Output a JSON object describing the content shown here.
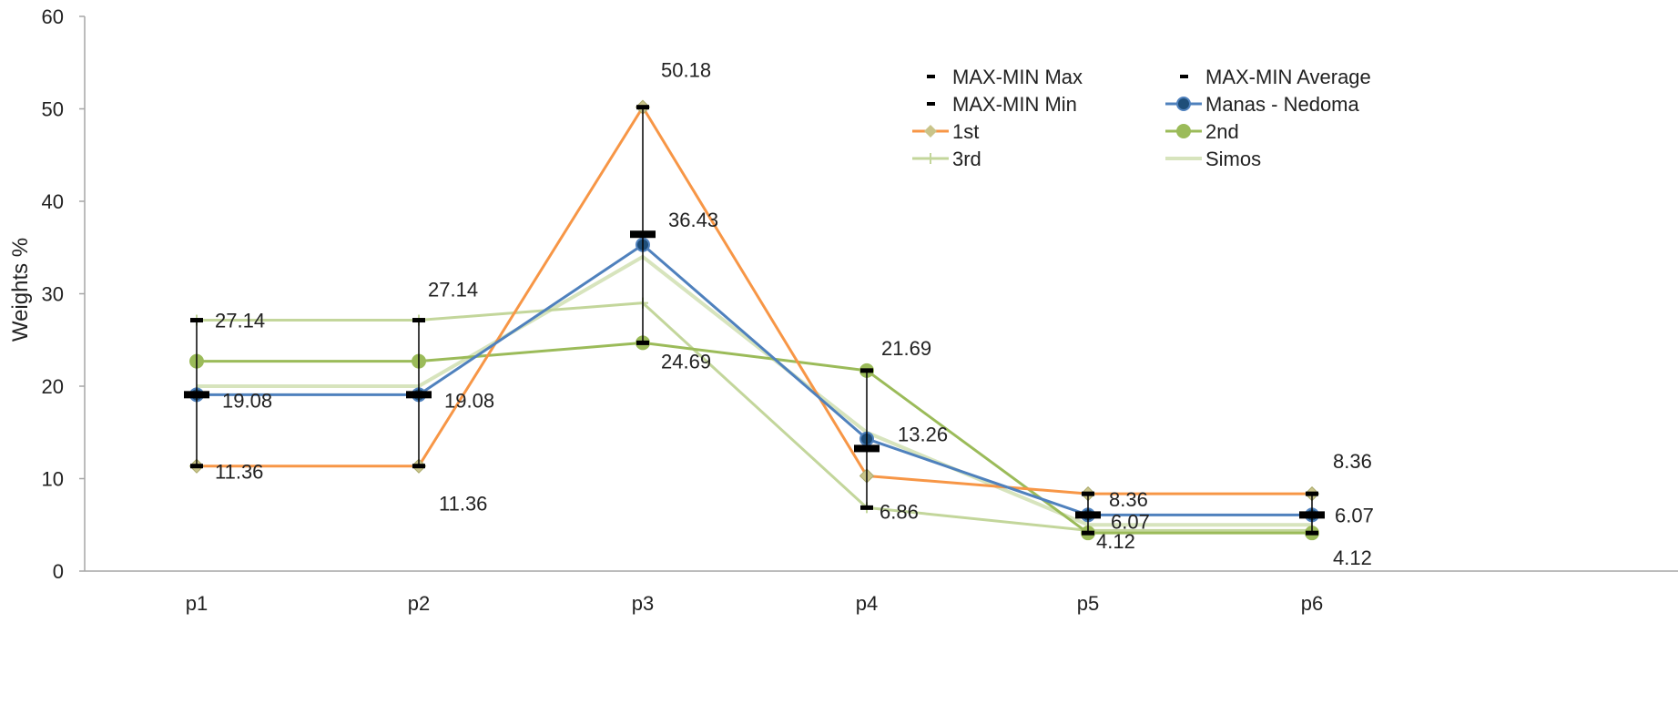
{
  "chart_data": {
    "type": "line",
    "title": "",
    "xlabel": "",
    "ylabel": "Weights  %",
    "ylim": [
      0,
      60
    ],
    "yticks": [
      0,
      10,
      20,
      30,
      40,
      50,
      60
    ],
    "grid": false,
    "legend_position": "top-right",
    "categories": [
      "p1",
      "p2",
      "p3",
      "p4",
      "p5",
      "p6"
    ],
    "error_bars": {
      "max": {
        "name": "MAX-MIN Max",
        "values": [
          27.14,
          27.14,
          50.18,
          21.69,
          8.36,
          8.36
        ]
      },
      "min": {
        "name": "MAX-MIN Min",
        "values": [
          11.36,
          11.36,
          24.69,
          6.86,
          4.12,
          4.12
        ]
      },
      "average": {
        "name": "MAX-MIN Average",
        "values": [
          19.08,
          19.08,
          36.43,
          13.26,
          6.07,
          6.07
        ]
      }
    },
    "series": [
      {
        "name": "Manas - Nedoma",
        "color": "#4f81bd",
        "marker": "circle",
        "values": [
          19.08,
          19.08,
          35.3,
          14.3,
          6.07,
          6.07
        ]
      },
      {
        "name": "1st",
        "color": "#f79646",
        "marker": "diamond",
        "values": [
          11.36,
          11.36,
          50.18,
          10.3,
          8.36,
          8.36
        ]
      },
      {
        "name": "2nd",
        "color": "#9bbb59",
        "marker": "circle",
        "values": [
          22.7,
          22.7,
          24.69,
          21.69,
          4.12,
          4.12
        ]
      },
      {
        "name": "3rd",
        "color": "#c3d69b",
        "marker": "plus",
        "values": [
          27.14,
          27.14,
          29.0,
          6.86,
          4.4,
          4.4
        ]
      },
      {
        "name": "Simos",
        "color": "#d7e4bd",
        "marker": "none",
        "values": [
          20.0,
          20.0,
          34.0,
          15.0,
          5.0,
          5.0
        ]
      }
    ],
    "data_labels": [
      {
        "category": "p1",
        "value": 27.14,
        "text": "27.14"
      },
      {
        "category": "p1",
        "value": 19.08,
        "text": "19.08"
      },
      {
        "category": "p1",
        "value": 11.36,
        "text": "11.36"
      },
      {
        "category": "p2",
        "value": 27.14,
        "text": "27.14"
      },
      {
        "category": "p2",
        "value": 19.08,
        "text": "19.08"
      },
      {
        "category": "p2",
        "value": 11.36,
        "text": "11.36"
      },
      {
        "category": "p3",
        "value": 50.18,
        "text": "50.18"
      },
      {
        "category": "p3",
        "value": 36.43,
        "text": "36.43"
      },
      {
        "category": "p3",
        "value": 24.69,
        "text": "24.69"
      },
      {
        "category": "p4",
        "value": 21.69,
        "text": "21.69"
      },
      {
        "category": "p4",
        "value": 13.26,
        "text": "13.26"
      },
      {
        "category": "p4",
        "value": 6.86,
        "text": "6.86"
      },
      {
        "category": "p5",
        "value": 8.36,
        "text": "8.36"
      },
      {
        "category": "p5",
        "value": 6.07,
        "text": "6.07"
      },
      {
        "category": "p5",
        "value": 4.12,
        "text": "4.12"
      },
      {
        "category": "p6",
        "value": 8.36,
        "text": "8.36"
      },
      {
        "category": "p6",
        "value": 6.07,
        "text": "6.07"
      },
      {
        "category": "p6",
        "value": 4.12,
        "text": "4.12"
      }
    ],
    "legend": [
      "MAX-MIN Max",
      "MAX-MIN Average",
      "MAX-MIN Min",
      "Manas - Nedoma",
      "1st",
      "2nd",
      "3rd",
      "Simos"
    ]
  }
}
